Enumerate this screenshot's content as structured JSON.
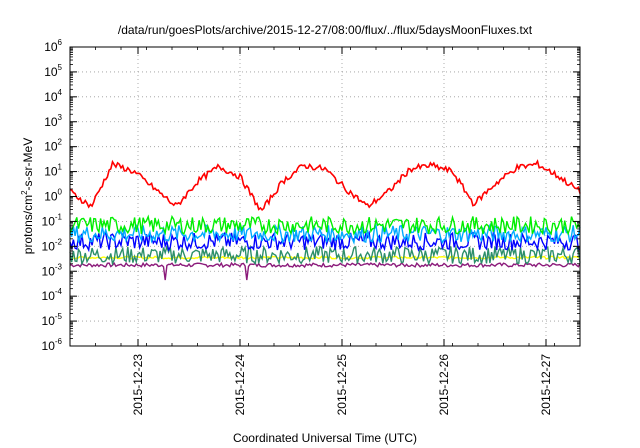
{
  "chart_data": {
    "type": "line",
    "title": "/data/run/goesPlots/archive/2015-12-27/08:00/flux/../flux/5daysMoonFluxes.txt",
    "xlabel": "Coordinated Universal Time (UTC)",
    "ylabel": {
      "base": "protons/cm",
      "sup": "2",
      "rest": "-s-sr-MeV"
    },
    "yscale": "log",
    "ylim_exp": [
      -6,
      6
    ],
    "ytick_base": "10",
    "ytick_exponents": [
      "-6",
      "-5",
      "-4",
      "-3",
      "-2",
      "-1",
      "0",
      "1",
      "2",
      "3",
      "4",
      "5",
      "6"
    ],
    "x_range": [
      "2015-12-22T08:00",
      "2015-12-27T08:00"
    ],
    "xticks": [
      "2015-12-23",
      "2015-12-24",
      "2015-12-25",
      "2015-12-26",
      "2015-12-27"
    ],
    "grid": true,
    "series": [
      {
        "color": "#ff0000",
        "kind": "red",
        "level_log": [
          0.2,
          -0.4,
          1.3,
          1.0,
          0.3,
          -0.4,
          0.6,
          1.2,
          0.8,
          -0.6,
          0.6,
          1.25,
          1.1,
          0.3,
          -0.4,
          0.2,
          1.1,
          1.25,
          1.0,
          -0.3,
          0.5,
          1.15,
          1.3,
          0.8,
          0.2
        ]
      },
      {
        "color": "#00ee00",
        "kind": "green",
        "level_log": -1.15
      },
      {
        "color": "#00aaff",
        "kind": "cyan",
        "level_log": -1.5
      },
      {
        "color": "#0000ff",
        "kind": "blue",
        "level_log": -1.8
      },
      {
        "color": "#2d8f6a",
        "kind": "teal",
        "level_log": -2.35
      },
      {
        "color": "#ffff00",
        "kind": "yellow",
        "level_log": -2.45
      },
      {
        "color": "#8b1a7a",
        "kind": "purple",
        "level_log": -2.75
      }
    ]
  }
}
